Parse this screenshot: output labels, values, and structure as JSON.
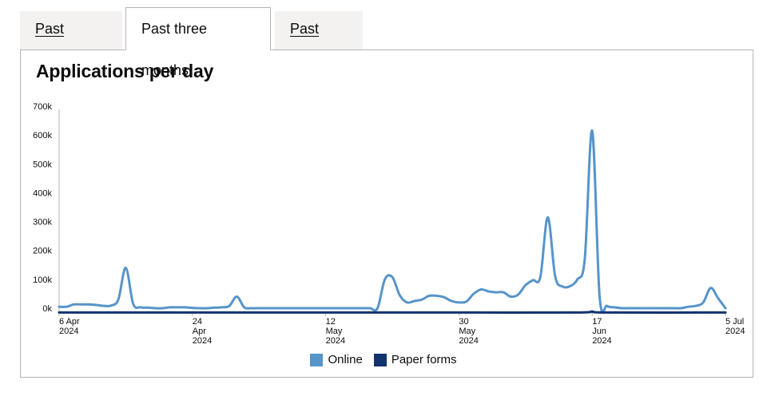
{
  "tabs": [
    {
      "label": "Past month",
      "active": false
    },
    {
      "label": "Past three months",
      "active": true
    },
    {
      "label": "Past year",
      "active": false
    }
  ],
  "title": "Applications per day",
  "colors": {
    "online": "#5694ca",
    "paper": "#12336e",
    "axis": "#b1b4b6"
  },
  "chart_data": {
    "type": "line",
    "title": "Applications per day",
    "xlabel": "",
    "ylabel": "",
    "ylim": [
      0,
      700000
    ],
    "xlim": [
      "2024-04-06",
      "2024-07-05"
    ],
    "y_ticks": [
      {
        "value": 0,
        "label": "0k"
      },
      {
        "value": 100000,
        "label": "100k"
      },
      {
        "value": 200000,
        "label": "200k"
      },
      {
        "value": 300000,
        "label": "300k"
      },
      {
        "value": 400000,
        "label": "400k"
      },
      {
        "value": 500000,
        "label": "500k"
      },
      {
        "value": 600000,
        "label": "600k"
      },
      {
        "value": 700000,
        "label": "700k"
      }
    ],
    "x_ticks": [
      {
        "date": "2024-04-06",
        "label": [
          "6 Apr",
          "2024"
        ]
      },
      {
        "date": "2024-04-24",
        "label": [
          "24",
          "Apr",
          "2024"
        ]
      },
      {
        "date": "2024-05-12",
        "label": [
          "12",
          "May",
          "2024"
        ]
      },
      {
        "date": "2024-05-30",
        "label": [
          "30",
          "May",
          "2024"
        ]
      },
      {
        "date": "2024-06-17",
        "label": [
          "17",
          "Jun",
          "2024"
        ]
      },
      {
        "date": "2024-07-05",
        "label": [
          "5 Jul",
          "2024"
        ]
      }
    ],
    "grid": false,
    "legend": "bottom-center",
    "series": [
      {
        "name": "Online",
        "points": [
          [
            "2024-04-06",
            5000
          ],
          [
            "2024-04-07",
            5000
          ],
          [
            "2024-04-08",
            13000
          ],
          [
            "2024-04-09",
            13000
          ],
          [
            "2024-04-10",
            13000
          ],
          [
            "2024-04-11",
            11000
          ],
          [
            "2024-04-12",
            8000
          ],
          [
            "2024-04-13",
            9000
          ],
          [
            "2024-04-14",
            30000
          ],
          [
            "2024-04-15",
            140000
          ],
          [
            "2024-04-16",
            15000
          ],
          [
            "2024-04-17",
            3000
          ],
          [
            "2024-04-18",
            2000
          ],
          [
            "2024-04-19",
            0
          ],
          [
            "2024-04-20",
            0
          ],
          [
            "2024-04-21",
            3000
          ],
          [
            "2024-04-22",
            3000
          ],
          [
            "2024-04-23",
            3000
          ],
          [
            "2024-04-24",
            1000
          ],
          [
            "2024-04-25",
            0
          ],
          [
            "2024-04-26",
            0
          ],
          [
            "2024-04-27",
            2000
          ],
          [
            "2024-04-28",
            3000
          ],
          [
            "2024-04-29",
            8000
          ],
          [
            "2024-04-30",
            40000
          ],
          [
            "2024-05-01",
            3000
          ],
          [
            "2024-05-02",
            0
          ],
          [
            "2024-05-03",
            0
          ],
          [
            "2024-05-04",
            0
          ],
          [
            "2024-05-05",
            0
          ],
          [
            "2024-05-06",
            0
          ],
          [
            "2024-05-07",
            0
          ],
          [
            "2024-05-08",
            0
          ],
          [
            "2024-05-09",
            0
          ],
          [
            "2024-05-10",
            0
          ],
          [
            "2024-05-11",
            0
          ],
          [
            "2024-05-12",
            0
          ],
          [
            "2024-05-13",
            0
          ],
          [
            "2024-05-14",
            0
          ],
          [
            "2024-05-15",
            0
          ],
          [
            "2024-05-16",
            0
          ],
          [
            "2024-05-17",
            0
          ],
          [
            "2024-05-18",
            0
          ],
          [
            "2024-05-19",
            0
          ],
          [
            "2024-05-20",
            100000
          ],
          [
            "2024-05-21",
            108000
          ],
          [
            "2024-05-22",
            45000
          ],
          [
            "2024-05-23",
            20000
          ],
          [
            "2024-05-24",
            25000
          ],
          [
            "2024-05-25",
            30000
          ],
          [
            "2024-05-26",
            43000
          ],
          [
            "2024-05-27",
            43000
          ],
          [
            "2024-05-28",
            38000
          ],
          [
            "2024-05-29",
            25000
          ],
          [
            "2024-05-30",
            20000
          ],
          [
            "2024-05-31",
            23000
          ],
          [
            "2024-06-01",
            50000
          ],
          [
            "2024-06-02",
            65000
          ],
          [
            "2024-06-03",
            58000
          ],
          [
            "2024-06-04",
            55000
          ],
          [
            "2024-06-05",
            55000
          ],
          [
            "2024-06-06",
            40000
          ],
          [
            "2024-06-07",
            47000
          ],
          [
            "2024-06-08",
            80000
          ],
          [
            "2024-06-09",
            97000
          ],
          [
            "2024-06-10",
            108000
          ],
          [
            "2024-06-11",
            315000
          ],
          [
            "2024-06-12",
            110000
          ],
          [
            "2024-06-13",
            75000
          ],
          [
            "2024-06-14",
            76000
          ],
          [
            "2024-06-15",
            100000
          ],
          [
            "2024-06-16",
            170000
          ],
          [
            "2024-06-17",
            615000
          ],
          [
            "2024-06-18",
            40000
          ],
          [
            "2024-06-19",
            8000
          ],
          [
            "2024-06-20",
            3000
          ],
          [
            "2024-06-21",
            0
          ],
          [
            "2024-06-22",
            0
          ],
          [
            "2024-06-23",
            0
          ],
          [
            "2024-06-24",
            0
          ],
          [
            "2024-06-25",
            0
          ],
          [
            "2024-06-26",
            0
          ],
          [
            "2024-06-27",
            0
          ],
          [
            "2024-06-28",
            0
          ],
          [
            "2024-06-29",
            0
          ],
          [
            "2024-06-30",
            5000
          ],
          [
            "2024-07-01",
            8000
          ],
          [
            "2024-07-02",
            20000
          ],
          [
            "2024-07-03",
            70000
          ],
          [
            "2024-07-04",
            35000
          ],
          [
            "2024-07-05",
            0
          ]
        ]
      },
      {
        "name": "Paper forms",
        "points": [
          [
            "2024-04-06",
            -15000
          ],
          [
            "2024-04-20",
            -15000
          ],
          [
            "2024-05-04",
            -15000
          ],
          [
            "2024-05-18",
            -15000
          ],
          [
            "2024-06-01",
            -15000
          ],
          [
            "2024-06-15",
            -15000
          ],
          [
            "2024-06-17",
            -12000
          ],
          [
            "2024-06-19",
            -15000
          ],
          [
            "2024-07-05",
            -15000
          ]
        ]
      }
    ]
  }
}
